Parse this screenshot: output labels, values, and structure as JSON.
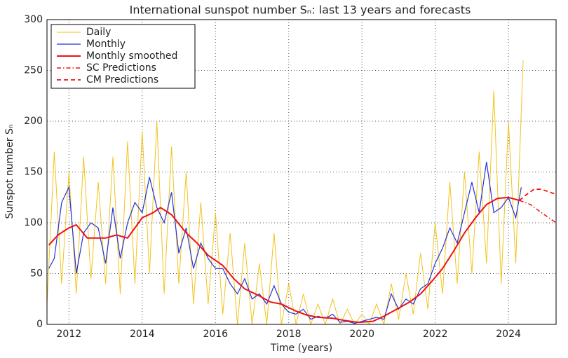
{
  "chart_data": {
    "type": "line",
    "title": "International sunspot number Sₙ: last 13 years and forecasts",
    "xlabel": "Time (years)",
    "ylabel": "Sunspot number Sₙ",
    "xlim": [
      2011.4,
      2025.3
    ],
    "ylim": [
      0,
      300
    ],
    "xticks": [
      2012,
      2014,
      2016,
      2018,
      2020,
      2022,
      2024
    ],
    "yticks": [
      0,
      50,
      100,
      150,
      200,
      250,
      300
    ],
    "grid": true,
    "legend": "upper left",
    "series": [
      {
        "name": "Daily",
        "color": "#f2c31c",
        "width": 1,
        "style": "solid",
        "x": [
          2011.4,
          2011.6,
          2011.8,
          2012.0,
          2012.2,
          2012.4,
          2012.6,
          2012.8,
          2013.0,
          2013.2,
          2013.4,
          2013.6,
          2013.8,
          2014.0,
          2014.2,
          2014.4,
          2014.6,
          2014.8,
          2015.0,
          2015.2,
          2015.4,
          2015.6,
          2015.8,
          2016.0,
          2016.2,
          2016.4,
          2016.6,
          2016.8,
          2017.0,
          2017.2,
          2017.4,
          2017.6,
          2017.8,
          2018.0,
          2018.2,
          2018.4,
          2018.6,
          2018.8,
          2019.0,
          2019.2,
          2019.4,
          2019.6,
          2019.8,
          2020.0,
          2020.2,
          2020.4,
          2020.6,
          2020.8,
          2021.0,
          2021.2,
          2021.4,
          2021.6,
          2021.8,
          2022.0,
          2022.2,
          2022.4,
          2022.6,
          2022.8,
          2023.0,
          2023.2,
          2023.4,
          2023.6,
          2023.8,
          2024.0,
          2024.2,
          2024.4
        ],
        "values": [
          20,
          170,
          40,
          150,
          30,
          165,
          45,
          140,
          40,
          165,
          30,
          180,
          40,
          190,
          50,
          200,
          30,
          175,
          40,
          150,
          20,
          120,
          20,
          110,
          10,
          90,
          0,
          80,
          0,
          60,
          0,
          90,
          0,
          40,
          0,
          30,
          0,
          20,
          0,
          25,
          0,
          15,
          0,
          10,
          0,
          20,
          0,
          40,
          5,
          50,
          10,
          70,
          15,
          100,
          30,
          140,
          40,
          150,
          50,
          170,
          60,
          230,
          40,
          200,
          60,
          260
        ]
      },
      {
        "name": "Monthly",
        "color": "#2233dd",
        "width": 1.2,
        "style": "solid",
        "x": [
          2011.45,
          2011.6,
          2011.8,
          2012.0,
          2012.2,
          2012.4,
          2012.6,
          2012.8,
          2013.0,
          2013.2,
          2013.4,
          2013.6,
          2013.8,
          2014.0,
          2014.2,
          2014.4,
          2014.6,
          2014.8,
          2015.0,
          2015.2,
          2015.4,
          2015.6,
          2015.8,
          2016.0,
          2016.2,
          2016.4,
          2016.6,
          2016.8,
          2017.0,
          2017.2,
          2017.4,
          2017.6,
          2017.8,
          2018.0,
          2018.2,
          2018.4,
          2018.6,
          2018.8,
          2019.0,
          2019.2,
          2019.4,
          2019.6,
          2019.8,
          2020.0,
          2020.2,
          2020.4,
          2020.6,
          2020.8,
          2021.0,
          2021.2,
          2021.4,
          2021.6,
          2021.8,
          2022.0,
          2022.2,
          2022.4,
          2022.6,
          2022.8,
          2023.0,
          2023.2,
          2023.4,
          2023.6,
          2023.8,
          2024.0,
          2024.2,
          2024.35
        ],
        "values": [
          55,
          65,
          120,
          135,
          50,
          90,
          100,
          95,
          60,
          115,
          65,
          100,
          120,
          110,
          145,
          115,
          100,
          130,
          70,
          95,
          55,
          80,
          65,
          55,
          55,
          40,
          30,
          45,
          25,
          30,
          20,
          38,
          20,
          12,
          10,
          15,
          5,
          8,
          6,
          10,
          2,
          3,
          1,
          3,
          5,
          7,
          5,
          30,
          15,
          25,
          20,
          35,
          40,
          60,
          75,
          95,
          80,
          110,
          140,
          110,
          160,
          110,
          115,
          125,
          105,
          135
        ]
      },
      {
        "name": "Monthly smoothed",
        "color": "#ee1111",
        "width": 2,
        "style": "solid",
        "x": [
          2011.45,
          2011.7,
          2012.0,
          2012.2,
          2012.5,
          2013.0,
          2013.3,
          2013.6,
          2014.0,
          2014.3,
          2014.5,
          2014.8,
          2015.2,
          2015.5,
          2015.8,
          2016.2,
          2016.5,
          2016.8,
          2017.2,
          2017.5,
          2017.8,
          2018.2,
          2018.5,
          2018.8,
          2019.2,
          2019.5,
          2019.9,
          2020.3,
          2020.6,
          2020.9,
          2021.3,
          2021.6,
          2021.9,
          2022.2,
          2022.5,
          2022.8,
          2023.1,
          2023.4,
          2023.7,
          2024.0,
          2024.3
        ],
        "values": [
          78,
          88,
          95,
          98,
          85,
          85,
          88,
          85,
          105,
          110,
          115,
          108,
          90,
          80,
          68,
          58,
          45,
          35,
          28,
          22,
          20,
          13,
          9,
          7,
          6,
          4,
          2,
          3,
          8,
          14,
          22,
          30,
          42,
          55,
          72,
          90,
          105,
          118,
          124,
          125,
          122
        ]
      },
      {
        "name": "SC Predictions",
        "color": "#ee1111",
        "width": 1.5,
        "style": "dashdot",
        "x": [
          2024.3,
          2024.6,
          2024.9,
          2025.3
        ],
        "values": [
          122,
          118,
          110,
          100
        ]
      },
      {
        "name": "CM Predictions",
        "color": "#ee1111",
        "width": 1.8,
        "style": "dashed",
        "x": [
          2024.3,
          2024.5,
          2024.7,
          2024.9,
          2025.3
        ],
        "values": [
          122,
          128,
          133,
          133,
          128
        ]
      }
    ]
  }
}
